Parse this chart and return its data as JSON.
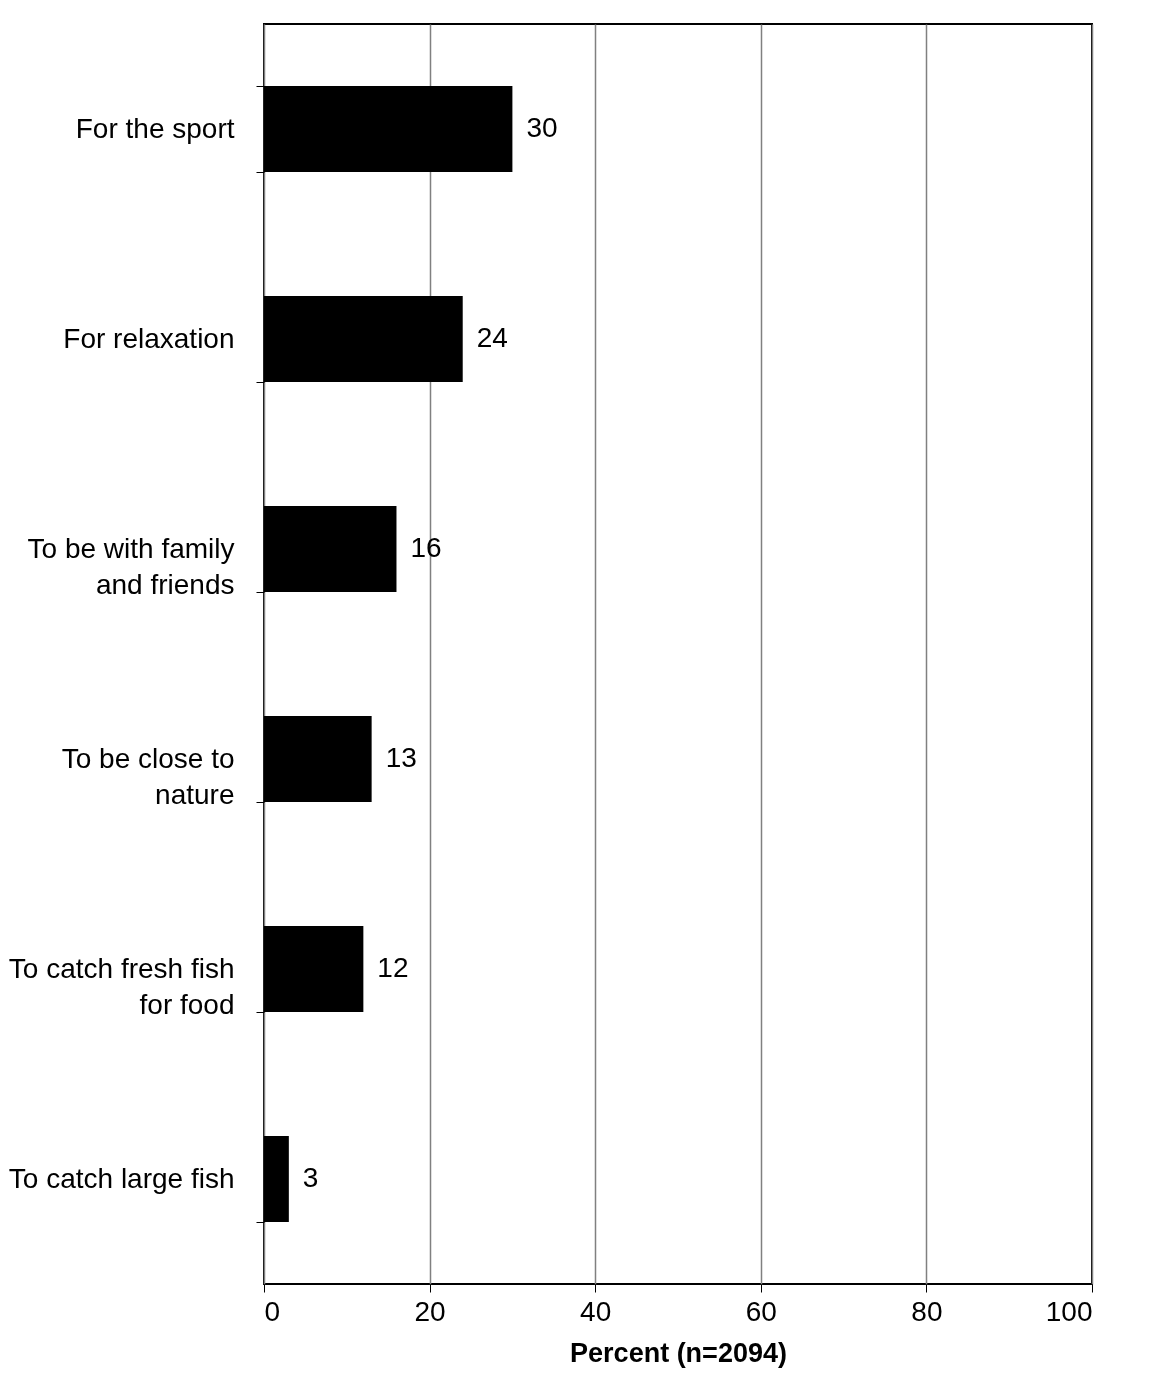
{
  "chart_data": {
    "type": "bar",
    "orientation": "horizontal",
    "xlabel": "Percent (n=2094)",
    "categories": [
      "For the sport",
      "For relaxation",
      "To be with family and friends",
      "To be close to nature",
      "To catch fresh fish for food",
      "To catch large fish"
    ],
    "values": [
      30,
      24,
      16,
      13,
      12,
      3
    ],
    "color": "#000000",
    "xlim": [
      0,
      100
    ],
    "xticks": [
      0,
      20,
      40,
      60,
      80,
      100
    ],
    "grid": "x",
    "data_labels": true
  }
}
